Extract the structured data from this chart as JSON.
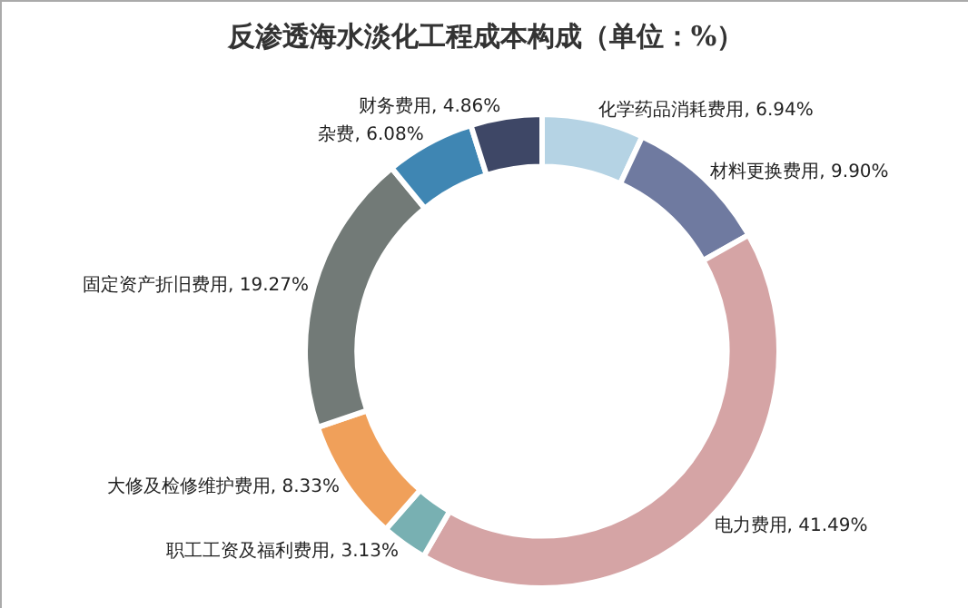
{
  "chart_data": {
    "type": "donut",
    "title": "反渗透海水淡化工程成本构成（单位：%）",
    "categories": [
      "化学药品消耗费用",
      "材料更换费用",
      "电力费用",
      "职工工资及福利费用",
      "大修及检修维护费用",
      "固定资产折旧费用",
      "杂费",
      "财务费用"
    ],
    "values": [
      6.94,
      9.9,
      41.49,
      3.13,
      8.33,
      19.27,
      6.08,
      4.86
    ],
    "value_labels": [
      "6.94%",
      "9.90%",
      "41.49%",
      "3.13%",
      "8.33%",
      "19.27%",
      "6.08%",
      "4.86%"
    ],
    "colors": [
      "#b5d3e4",
      "#6f7aa0",
      "#d5a4a5",
      "#78b0b2",
      "#f0a05a",
      "#727a77",
      "#3f86b3",
      "#3e4766"
    ],
    "legend": false
  }
}
